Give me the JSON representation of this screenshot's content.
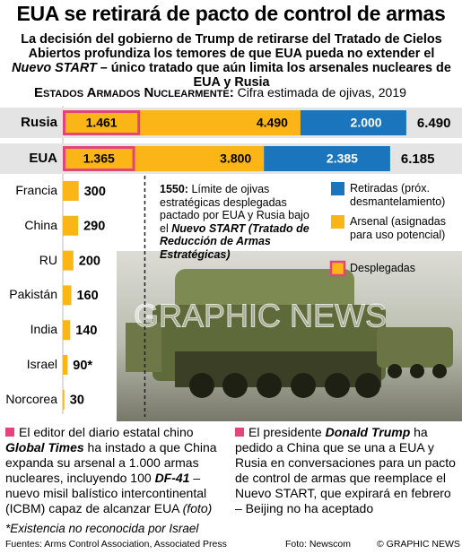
{
  "chart_data": {
    "type": "bar",
    "title": "EUA se retirará de pacto de control de armas",
    "subtitle": [
      "La decisión del gobierno de Trump de retirarse del Tratado de Cielos Abiertos profundiza los temores de que EUA pueda no extender el ",
      "Nuevo START",
      " – único tratado que aún limita los arsenales nucleares de EUA y Rusia"
    ],
    "heading": {
      "caps": "Estados Armados Nuclearmente:",
      "text": " Cifra estimada de ojivas, 2019"
    },
    "categories": [
      "Rusia",
      "EUA",
      "Francia",
      "China",
      "RU",
      "Pakistán",
      "India",
      "Israel",
      "Norcorea"
    ],
    "series": [
      {
        "name": "Retiradas (próx. desmantelamiento)",
        "color": "#1b75bc",
        "values": [
          2000,
          2385,
          null,
          null,
          null,
          null,
          null,
          null,
          null
        ],
        "value_labels": [
          "2.000",
          "2.385",
          null,
          null,
          null,
          null,
          null,
          null,
          null
        ]
      },
      {
        "name": "Arsenal (asignadas para uso potencial)",
        "color": "#fbb516",
        "values": [
          4490,
          3800,
          300,
          290,
          200,
          160,
          140,
          90,
          30
        ],
        "value_labels": [
          "4.490",
          "3.800",
          "300",
          "290",
          "200",
          "160",
          "140",
          "90*",
          "30"
        ]
      },
      {
        "name": "Desplegadas",
        "color": "#fbb516",
        "border": "#e2457a",
        "values": [
          1461,
          1365,
          null,
          null,
          null,
          null,
          null,
          null,
          null
        ],
        "value_labels": [
          "1.461",
          "1.365",
          null,
          null,
          null,
          null,
          null,
          null,
          null
        ]
      }
    ],
    "totals": {
      "values": [
        6490,
        6185
      ],
      "value_labels": [
        "6.490",
        "6.185"
      ]
    },
    "limit": {
      "value": 1550,
      "label": "1550:",
      "text": " Límite de ojivas estratégicas desplegadas pactado por EUA y Rusia bajo el ",
      "text_bold": "Nuevo START",
      "text_paren": " (Tratado de Reducción de Armas Estratégicas)"
    },
    "watermark": "GRAPHIC NEWS",
    "notes": [
      [
        "El editor del diario estatal chino ",
        "Global Times",
        " ha instado a que China expanda su arsenal a 1.000 armas nucleares, incluyendo 100 ",
        "DF-41",
        " – nuevo misil balístico intercontinental (ICBM) capaz de alcanzar EUA ",
        "(foto)"
      ],
      [
        "El presidente ",
        "Donald Trump",
        " ha pedido a China que se una a EUA y Rusia en conversaciones para un pacto de control de armas que reemplace el Nuevo START, que expirará en febrero – Beijing no ha aceptado"
      ]
    ],
    "footnote": "*Existencia no reconocida por Israel",
    "sources": "Fuentes: Arms Control Association, Associated Press",
    "photo_credit": "Foto: Newscom",
    "copyright": "© GRAPHIC NEWS"
  }
}
